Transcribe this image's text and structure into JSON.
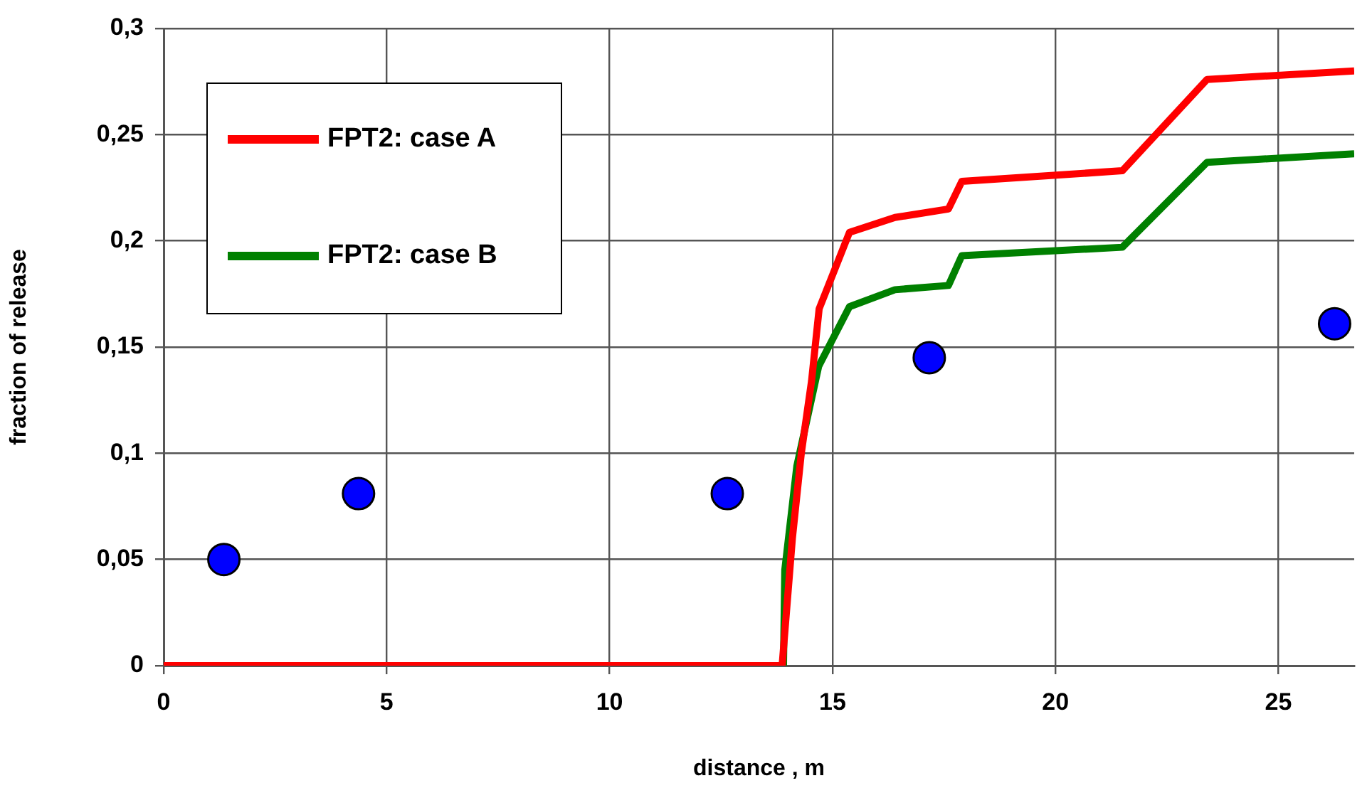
{
  "chart_data": {
    "type": "line",
    "xlabel": "distance , m",
    "ylabel": "fraction of release",
    "xlim": [
      0,
      26.7
    ],
    "ylim": [
      0,
      0.3
    ],
    "xticks": [
      0,
      5,
      10,
      15,
      20,
      25
    ],
    "yticks": [
      0,
      {
        "value": 0.05,
        "label": "0,05"
      },
      {
        "value": 0.1,
        "label": "0,1"
      },
      {
        "value": 0.15,
        "label": "0,15"
      },
      {
        "value": 0.2,
        "label": "0,2"
      },
      {
        "value": 0.25,
        "label": "0,25"
      },
      {
        "value": 0.3,
        "label": "0,3"
      }
    ],
    "grid": true,
    "legend": "top left",
    "line_style": "solid",
    "series": [
      {
        "name": "FPT2: case A",
        "color": "#ff0000",
        "marker": "none",
        "x": [
          0,
          13.87,
          14.1,
          14.3,
          14.53,
          14.7,
          15.38,
          16.4,
          17.6,
          17.9,
          21.5,
          23.4,
          26.7
        ],
        "values": [
          0,
          0,
          0.06,
          0.1,
          0.134,
          0.168,
          0.204,
          0.211,
          0.215,
          0.228,
          0.233,
          0.276,
          0.28
        ]
      },
      {
        "name": "FPT2: case B",
        "color": "#008000",
        "marker": "none",
        "x": [
          0,
          13.9,
          13.93,
          14.2,
          14.69,
          15.38,
          16.4,
          17.6,
          17.9,
          21.5,
          23.4,
          26.7
        ],
        "values": [
          0,
          0,
          0.045,
          0.094,
          0.141,
          0.169,
          0.177,
          0.179,
          0.193,
          0.197,
          0.237,
          0.241
        ]
      },
      {
        "type": "scatter",
        "color": "#0000ff",
        "marker": "circle",
        "x": [
          1.35,
          4.37,
          12.64,
          17.17,
          26.26
        ],
        "values": [
          0.05,
          0.081,
          0.081,
          0.145,
          0.161
        ]
      }
    ]
  }
}
